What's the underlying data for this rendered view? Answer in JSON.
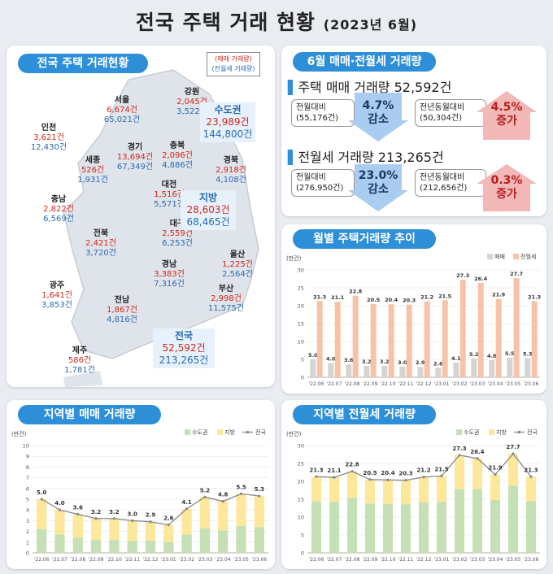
{
  "header": {
    "title": "전국 주택 거래 현황",
    "subtitle": "(2023년 6월)"
  },
  "map": {
    "title": "전국 주택 거래현황",
    "legend_sale": "(매매 거래량)",
    "legend_rent": "(전월세 거래량)",
    "regions": [
      {
        "name": "서울",
        "sale": "6,674건",
        "rent": "65,021건"
      },
      {
        "name": "강원",
        "sale": "2,045건",
        "rent": "3,522건"
      },
      {
        "name": "인천",
        "sale": "3,621건",
        "rent": "12,430건"
      },
      {
        "name": "경기",
        "sale": "13,694건",
        "rent": "67,349건"
      },
      {
        "name": "충북",
        "sale": "2,096건",
        "rent": "4,886건"
      },
      {
        "name": "세종",
        "sale": "526건",
        "rent": "1,931건"
      },
      {
        "name": "경북",
        "sale": "2,918건",
        "rent": "4,108건"
      },
      {
        "name": "대전",
        "sale": "1,516건",
        "rent": "5,571건"
      },
      {
        "name": "충남",
        "sale": "2,822건",
        "rent": "6,569건"
      },
      {
        "name": "대구",
        "sale": "2,559건",
        "rent": "6,253건"
      },
      {
        "name": "전북",
        "sale": "2,421건",
        "rent": "3,720건"
      },
      {
        "name": "울산",
        "sale": "1,225건",
        "rent": "2,564건"
      },
      {
        "name": "경남",
        "sale": "3,383건",
        "rent": "7,316건"
      },
      {
        "name": "광주",
        "sale": "1,641건",
        "rent": "3,853건"
      },
      {
        "name": "부산",
        "sale": "2,998건",
        "rent": "11,575건"
      },
      {
        "name": "전남",
        "sale": "1,867건",
        "rent": "4,816건"
      },
      {
        "name": "제주",
        "sale": "586건",
        "rent": "1,781건"
      }
    ],
    "capital": {
      "name": "수도권",
      "sale": "23,989건",
      "rent": "144,800건"
    },
    "local": {
      "name": "지방",
      "sale": "28,603건",
      "rent": "68,465건"
    },
    "nation": {
      "name": "전국",
      "sale": "52,592건",
      "rent": "213,265건"
    }
  },
  "june": {
    "title": "6월 매매·전월세 거래량",
    "sale_heading": "주택 매매 거래량 52,592건",
    "sale_mom_label": "전월대비",
    "sale_mom_prev": "(55,176건)",
    "sale_mom_pct": "4.7%",
    "sale_mom_dir": "감소",
    "sale_yoy_label": "전년동월대비",
    "sale_yoy_prev": "(50,304건)",
    "sale_yoy_pct": "4.5%",
    "sale_yoy_dir": "증가",
    "rent_heading": "전월세 거래량 213,265건",
    "rent_mom_label": "전월대비",
    "rent_mom_prev": "(276,950건)",
    "rent_mom_pct": "23.0%",
    "rent_mom_dir": "감소",
    "rent_yoy_label": "전년동월대비",
    "rent_yoy_prev": "(212,656건)",
    "rent_yoy_pct": "0.3%",
    "rent_yoy_dir": "증가",
    "colors": {
      "decrease": "#3b8fe0",
      "increase": "#d23b3b"
    }
  },
  "chart_titles": {
    "monthly": "월별 주택거래량 추이",
    "regional_sale": "지역별 매매 거래량",
    "regional_rent": "지역별 전월세 거래량"
  },
  "chart_data": [
    {
      "type": "bar",
      "id": "monthly",
      "unit": "(만건)",
      "categories": [
        "'22.06",
        "'22.07",
        "'22.08",
        "'22.09",
        "'22.10",
        "'22.11",
        "'22.12",
        "'23.01",
        "'23.02",
        "'23.03",
        "'23.04",
        "'23.05",
        "'23.06"
      ],
      "series": [
        {
          "name": "매매",
          "color": "#d4d4d4",
          "values": [
            5.0,
            4.0,
            3.6,
            3.2,
            3.2,
            3.0,
            2.9,
            2.6,
            4.1,
            5.2,
            4.8,
            5.5,
            5.3
          ]
        },
        {
          "name": "전월세",
          "color": "#f7c3a8",
          "values": [
            21.3,
            21.1,
            22.8,
            20.5,
            20.4,
            20.3,
            21.2,
            21.5,
            27.3,
            26.4,
            21.9,
            27.7,
            21.3
          ]
        }
      ],
      "ylim": [
        0,
        30
      ],
      "yticks": [
        0,
        5,
        10,
        15,
        20,
        25,
        30
      ],
      "legend": "top-right"
    },
    {
      "type": "bar",
      "id": "regional_sale",
      "stacked": true,
      "unit": "(만건)",
      "categories": [
        "'22.06",
        "'22.07",
        "'22.08",
        "'22.09",
        "'22.10",
        "'22.11",
        "'22.12",
        "'23.01",
        "'23.02",
        "'23.03",
        "'23.04",
        "'23.05",
        "'23.06"
      ],
      "series": [
        {
          "name": "수도권",
          "color": "#c5e0b4",
          "values": [
            2.2,
            1.7,
            1.4,
            1.2,
            1.2,
            1.1,
            1.1,
            1.0,
            1.7,
            2.3,
            2.1,
            2.5,
            2.4
          ]
        },
        {
          "name": "지방",
          "color": "#fde79a",
          "values": [
            2.8,
            2.3,
            2.2,
            2.0,
            2.0,
            1.9,
            1.8,
            1.6,
            2.4,
            2.9,
            2.7,
            3.0,
            2.9
          ]
        },
        {
          "name": "전국",
          "color": "#888888",
          "type": "line",
          "values": [
            5.0,
            4.0,
            3.6,
            3.2,
            3.2,
            3.0,
            2.9,
            2.6,
            4.1,
            5.2,
            4.8,
            5.5,
            5.3
          ]
        }
      ],
      "ylim": [
        0,
        10
      ],
      "yticks": [
        0,
        1,
        2,
        3,
        4,
        5,
        6,
        7,
        8,
        9,
        10
      ],
      "legend": "top-right"
    },
    {
      "type": "bar",
      "id": "regional_rent",
      "stacked": true,
      "unit": "(만건)",
      "categories": [
        "'22.06",
        "'22.07",
        "'22.08",
        "'22.09",
        "'22.10",
        "'22.11",
        "'22.12",
        "'23.01",
        "'23.02",
        "'23.03",
        "'23.04",
        "'23.05",
        "'23.06"
      ],
      "series": [
        {
          "name": "수도권",
          "color": "#c5e0b4",
          "values": [
            14.4,
            14.2,
            15.4,
            13.8,
            13.7,
            13.6,
            14.1,
            14.2,
            17.8,
            17.9,
            14.8,
            18.8,
            14.5
          ]
        },
        {
          "name": "지방",
          "color": "#fde79a",
          "values": [
            6.9,
            6.9,
            7.4,
            6.7,
            6.7,
            6.7,
            7.1,
            7.3,
            9.5,
            8.5,
            7.1,
            8.9,
            6.8
          ]
        },
        {
          "name": "전국",
          "color": "#888888",
          "type": "line",
          "values": [
            21.3,
            21.1,
            22.8,
            20.5,
            20.4,
            20.3,
            21.2,
            21.5,
            27.3,
            26.4,
            21.9,
            27.7,
            21.3
          ]
        }
      ],
      "ylim": [
        0,
        30
      ],
      "yticks": [
        0,
        5,
        10,
        15,
        20,
        25,
        30
      ],
      "legend": "top-right"
    }
  ]
}
